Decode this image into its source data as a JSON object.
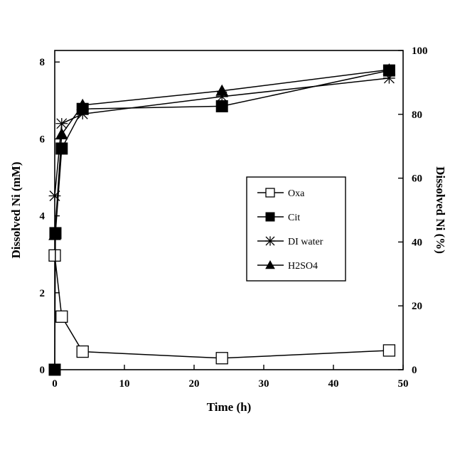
{
  "chart_data": {
    "type": "line",
    "xlabel": "Time (h)",
    "ylabel": "Dissolved Ni (mM)",
    "y2label": "Dissolved Ni (%)",
    "xlim": [
      0,
      50
    ],
    "ylim": [
      0,
      8.3
    ],
    "y2lim": [
      0,
      100
    ],
    "xticks": [
      0,
      10,
      20,
      30,
      40,
      50
    ],
    "yticks": [
      0,
      2,
      4,
      6,
      8
    ],
    "y2ticks": [
      0,
      20,
      40,
      60,
      80,
      100
    ],
    "grid": false,
    "legend_position": "center-right",
    "series": [
      {
        "name": "Oxa",
        "marker": "open-square",
        "color": "#000000",
        "points": [
          [
            0,
            2.97
          ],
          [
            1,
            1.38
          ],
          [
            4,
            0.47
          ],
          [
            24,
            0.3
          ],
          [
            48,
            0.5
          ]
        ]
      },
      {
        "name": "Cit",
        "marker": "filled-square",
        "color": "#000000",
        "points": [
          [
            0,
            0.0
          ],
          [
            0.1,
            3.55
          ],
          [
            1,
            5.75
          ],
          [
            4,
            6.78
          ],
          [
            24,
            6.85
          ],
          [
            48,
            7.78
          ]
        ]
      },
      {
        "name": "DI water",
        "marker": "asterisk",
        "color": "#000000",
        "points": [
          [
            0,
            4.52
          ],
          [
            1,
            6.4
          ],
          [
            4,
            6.65
          ],
          [
            24,
            7.1
          ],
          [
            48,
            7.58
          ]
        ]
      },
      {
        "name": "H2SO4",
        "marker": "filled-triangle",
        "color": "#000000",
        "points": [
          [
            0,
            3.5
          ],
          [
            1,
            6.12
          ],
          [
            4,
            6.88
          ],
          [
            24,
            7.25
          ],
          [
            48,
            7.8
          ]
        ]
      }
    ]
  }
}
